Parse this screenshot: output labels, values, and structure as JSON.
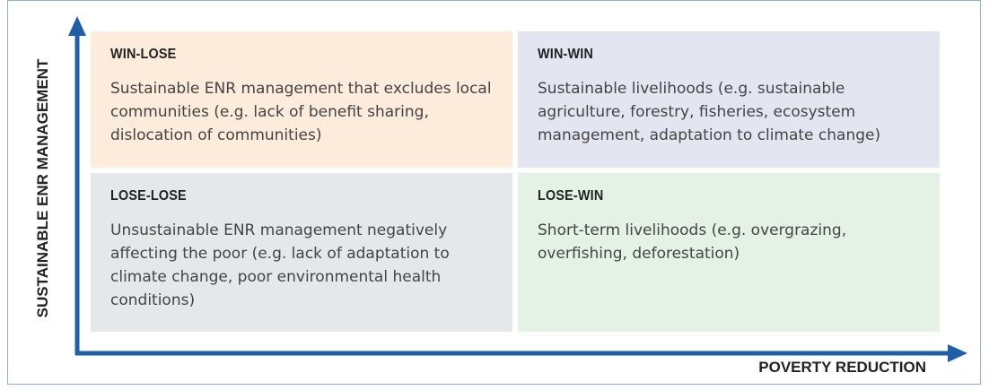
{
  "axes": {
    "y_label": "SUSTAINABLE ENR MANAGEMENT",
    "x_label": "POVERTY REDUCTION"
  },
  "quadrants": [
    {
      "title": "WIN-LOSE",
      "text": "Sustainable ENR management that excludes local communities (e.g. lack of benefit sharing, dislocation of communities)"
    },
    {
      "title": "WIN-WIN",
      "text": "Sustainable livelihoods (e.g. sustainable agriculture, forestry, fisheries, ecosystem management, adaptation to climate change)"
    },
    {
      "title": "LOSE-LOSE",
      "text": "Unsustainable ENR management negatively affecting the poor (e.g. lack of adaptation to climate change, poor environmental health conditions)"
    },
    {
      "title": "LOSE-WIN",
      "text": "Short-term livelihoods (e.g. overgrazing, overfishing, deforestation)"
    }
  ]
}
